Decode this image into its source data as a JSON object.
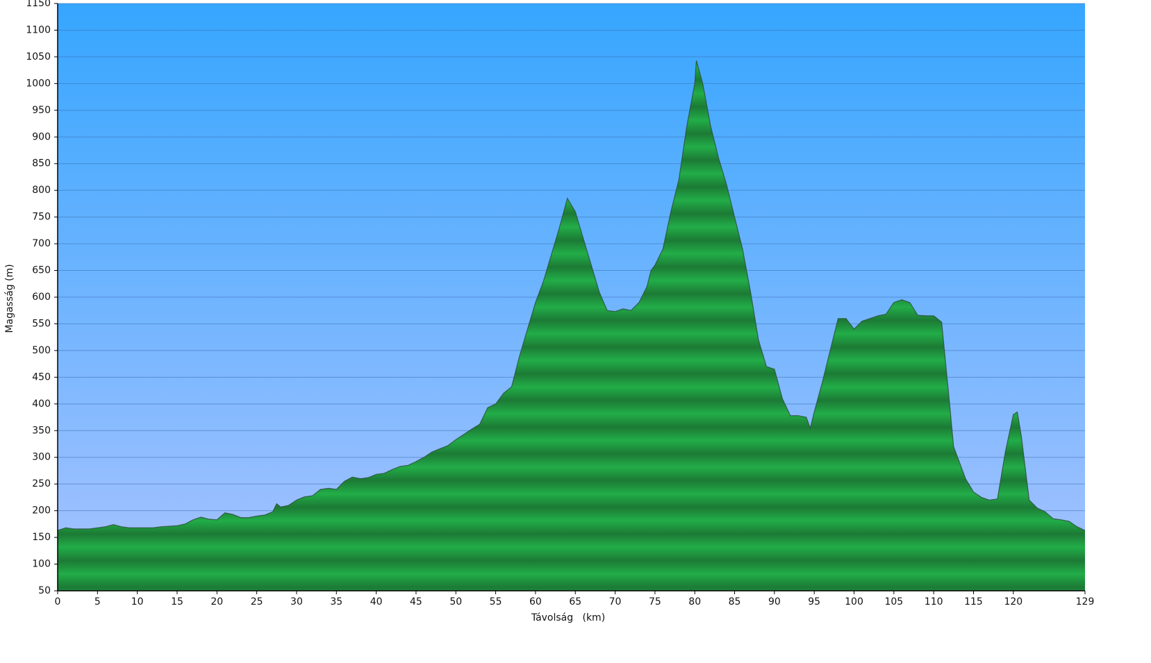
{
  "chart_data": {
    "type": "area",
    "x_label": "Távolság   (km)",
    "y_label": "Magasság (m)",
    "x": [
      0,
      1,
      2,
      4,
      6,
      7,
      8,
      9,
      12,
      13,
      15,
      16,
      17,
      18,
      19,
      20,
      21,
      22,
      23,
      24,
      25,
      26,
      27,
      27.5,
      28,
      29,
      30,
      31,
      32,
      33,
      34,
      35,
      36,
      37,
      38,
      39,
      40,
      41,
      42,
      43,
      44,
      45,
      46,
      47,
      48,
      49,
      50,
      51,
      52,
      53,
      54,
      55,
      56,
      57,
      58,
      59,
      60,
      61,
      62,
      63,
      64,
      65,
      66,
      67,
      68,
      69,
      70,
      71,
      72,
      73,
      74,
      74.5,
      75,
      76,
      77,
      78,
      79,
      80,
      80.2,
      81,
      82,
      83,
      84,
      85,
      86,
      87,
      88,
      89,
      90,
      91,
      92,
      93,
      94,
      94.5,
      95,
      96,
      97,
      98,
      99,
      100,
      101,
      102,
      103,
      104,
      105,
      106,
      107,
      108,
      109,
      110,
      111,
      112,
      112.5,
      113,
      114,
      115,
      116,
      117,
      118,
      119,
      120,
      120.5,
      121,
      122,
      123,
      124,
      125,
      126,
      127,
      128,
      129
    ],
    "values": [
      163,
      168,
      166,
      166,
      170,
      174,
      170,
      168,
      168,
      170,
      172,
      175,
      183,
      188,
      184,
      183,
      196,
      193,
      187,
      187,
      190,
      192,
      198,
      213,
      207,
      210,
      220,
      226,
      228,
      240,
      242,
      240,
      255,
      263,
      260,
      262,
      268,
      270,
      277,
      283,
      285,
      292,
      300,
      310,
      316,
      322,
      333,
      343,
      353,
      362,
      393,
      400,
      420,
      432,
      490,
      540,
      590,
      630,
      680,
      730,
      785,
      760,
      710,
      660,
      610,
      575,
      573,
      578,
      575,
      590,
      620,
      650,
      660,
      690,
      760,
      820,
      920,
      1000,
      1043,
      1000,
      920,
      860,
      810,
      750,
      690,
      610,
      520,
      470,
      465,
      410,
      378,
      378,
      375,
      355,
      385,
      440,
      500,
      560,
      560,
      540,
      555,
      560,
      565,
      568,
      590,
      595,
      590,
      566,
      565,
      565,
      553,
      400,
      320,
      300,
      260,
      235,
      225,
      220,
      222,
      310,
      380,
      385,
      340,
      220,
      205,
      198,
      185,
      183,
      180,
      170,
      163
    ],
    "xlim": [
      0,
      129
    ],
    "ylim": [
      50,
      1150
    ],
    "xticks": [
      0,
      5,
      10,
      15,
      20,
      25,
      30,
      35,
      40,
      45,
      50,
      55,
      60,
      65,
      70,
      75,
      80,
      85,
      90,
      95,
      100,
      105,
      110,
      115,
      120,
      129
    ],
    "yticks": [
      50,
      100,
      150,
      200,
      250,
      300,
      350,
      400,
      450,
      500,
      550,
      600,
      650,
      700,
      750,
      800,
      850,
      900,
      950,
      1000,
      1050,
      1100,
      1150
    ],
    "grid": true,
    "color": "#22a844"
  }
}
